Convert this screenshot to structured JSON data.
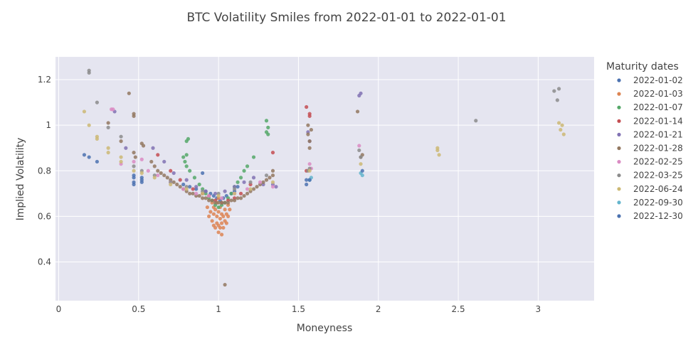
{
  "chart_data": {
    "type": "scatter",
    "title": "BTC Volatility Smiles from 2022-01-01 to 2022-01-01",
    "xlabel": "Moneyness",
    "ylabel": "Implied Volatility",
    "xlim": [
      -0.02,
      3.35
    ],
    "ylim": [
      0.23,
      1.3
    ],
    "xticks": [
      0,
      0.5,
      1,
      1.5,
      2,
      2.5,
      3
    ],
    "xtick_labels": [
      "0",
      "0.5",
      "1",
      "1.5",
      "2",
      "2.5",
      "3"
    ],
    "yticks": [
      0.4,
      0.6,
      0.8,
      1,
      1.2
    ],
    "ytick_labels": [
      "0.4",
      "0.6",
      "0.8",
      "1",
      "1.2"
    ],
    "grid": true,
    "plot_background": "#e5e5f0",
    "legend_title": "Maturity dates",
    "legend_position": "right",
    "series": [
      {
        "name": "2022-01-02",
        "color": "#4c72b0",
        "points": [
          [
            0.16,
            0.87
          ],
          [
            0.19,
            0.86
          ],
          [
            0.24,
            0.84
          ],
          [
            0.47,
            0.77
          ],
          [
            0.47,
            0.75
          ],
          [
            0.47,
            0.74
          ],
          [
            0.52,
            0.76
          ],
          [
            0.52,
            0.75
          ],
          [
            0.78,
            0.74
          ],
          [
            0.82,
            0.73
          ],
          [
            0.86,
            0.72
          ],
          [
            0.9,
            0.79
          ],
          [
            0.92,
            0.71
          ],
          [
            0.95,
            0.7
          ],
          [
            0.97,
            0.69
          ],
          [
            0.99,
            0.68
          ],
          [
            1.01,
            0.67
          ],
          [
            1.03,
            0.68
          ],
          [
            1.05,
            0.69
          ],
          [
            1.08,
            0.7
          ],
          [
            1.1,
            0.71
          ],
          [
            1.12,
            0.73
          ],
          [
            1.55,
            0.74
          ],
          [
            1.55,
            0.76
          ],
          [
            1.57,
            0.76
          ]
        ]
      },
      {
        "name": "2022-01-03",
        "color": "#dd8452",
        "points": [
          [
            0.93,
            0.64
          ],
          [
            0.94,
            0.6
          ],
          [
            0.95,
            0.62
          ],
          [
            0.96,
            0.58
          ],
          [
            0.96,
            0.66
          ],
          [
            0.97,
            0.56
          ],
          [
            0.97,
            0.61
          ],
          [
            0.98,
            0.55
          ],
          [
            0.98,
            0.63
          ],
          [
            0.99,
            0.57
          ],
          [
            0.99,
            0.6
          ],
          [
            1.0,
            0.53
          ],
          [
            1.0,
            0.56
          ],
          [
            1.0,
            0.62
          ],
          [
            1.01,
            0.55
          ],
          [
            1.01,
            0.59
          ],
          [
            1.01,
            0.64
          ],
          [
            1.02,
            0.52
          ],
          [
            1.02,
            0.57
          ],
          [
            1.02,
            0.61
          ],
          [
            1.03,
            0.55
          ],
          [
            1.03,
            0.6
          ],
          [
            1.04,
            0.58
          ],
          [
            1.04,
            0.63
          ],
          [
            1.05,
            0.57
          ],
          [
            1.05,
            0.61
          ],
          [
            1.06,
            0.6
          ],
          [
            1.06,
            0.65
          ],
          [
            1.07,
            0.63
          ],
          [
            0.99,
            0.66
          ],
          [
            1.0,
            0.68
          ],
          [
            0.97,
            0.64
          ]
        ]
      },
      {
        "name": "2022-01-07",
        "color": "#55a868",
        "points": [
          [
            0.78,
            0.86
          ],
          [
            0.79,
            0.84
          ],
          [
            0.8,
            0.82
          ],
          [
            0.8,
            0.87
          ],
          [
            0.8,
            0.93
          ],
          [
            0.81,
            0.94
          ],
          [
            0.82,
            0.8
          ],
          [
            0.85,
            0.77
          ],
          [
            0.88,
            0.74
          ],
          [
            0.9,
            0.72
          ],
          [
            0.92,
            0.7
          ],
          [
            0.94,
            0.68
          ],
          [
            0.96,
            0.67
          ],
          [
            0.98,
            0.65
          ],
          [
            1.0,
            0.64
          ],
          [
            1.02,
            0.65
          ],
          [
            1.04,
            0.66
          ],
          [
            1.06,
            0.68
          ],
          [
            1.08,
            0.7
          ],
          [
            1.1,
            0.73
          ],
          [
            1.12,
            0.75
          ],
          [
            1.14,
            0.77
          ],
          [
            1.16,
            0.8
          ],
          [
            1.18,
            0.82
          ],
          [
            1.22,
            0.86
          ],
          [
            1.3,
            1.02
          ],
          [
            1.3,
            0.97
          ],
          [
            1.31,
            0.96
          ],
          [
            1.31,
            0.99
          ]
        ]
      },
      {
        "name": "2022-01-14",
        "color": "#c44e52",
        "points": [
          [
            0.62,
            0.87
          ],
          [
            0.7,
            0.8
          ],
          [
            0.76,
            0.76
          ],
          [
            0.84,
            0.72
          ],
          [
            0.9,
            0.7
          ],
          [
            0.94,
            0.69
          ],
          [
            0.98,
            0.67
          ],
          [
            1.02,
            0.66
          ],
          [
            1.06,
            0.67
          ],
          [
            1.1,
            0.68
          ],
          [
            1.14,
            0.7
          ],
          [
            1.2,
            0.74
          ],
          [
            1.34,
            0.88
          ],
          [
            1.55,
            1.08
          ],
          [
            1.57,
            1.05
          ],
          [
            1.57,
            1.04
          ],
          [
            1.55,
            0.8
          ]
        ]
      },
      {
        "name": "2022-01-21",
        "color": "#8172b3",
        "points": [
          [
            0.35,
            1.06
          ],
          [
            0.42,
            0.9
          ],
          [
            0.59,
            0.9
          ],
          [
            0.66,
            0.84
          ],
          [
            0.72,
            0.79
          ],
          [
            0.8,
            0.76
          ],
          [
            0.86,
            0.73
          ],
          [
            0.92,
            0.71
          ],
          [
            0.98,
            0.7
          ],
          [
            1.04,
            0.71
          ],
          [
            1.1,
            0.73
          ],
          [
            1.16,
            0.75
          ],
          [
            1.22,
            0.77
          ],
          [
            1.28,
            0.74
          ],
          [
            1.34,
            0.74
          ],
          [
            1.36,
            0.73
          ],
          [
            1.56,
            0.97
          ],
          [
            1.57,
            0.93
          ],
          [
            1.88,
            1.13
          ],
          [
            1.89,
            1.14
          ]
        ]
      },
      {
        "name": "2022-01-28",
        "color": "#937860",
        "points": [
          [
            0.31,
            1.01
          ],
          [
            0.39,
            0.93
          ],
          [
            0.44,
            1.14
          ],
          [
            0.47,
            1.05
          ],
          [
            0.47,
            1.04
          ],
          [
            0.47,
            0.88
          ],
          [
            0.48,
            0.86
          ],
          [
            0.52,
            0.92
          ],
          [
            0.53,
            0.91
          ],
          [
            0.58,
            0.84
          ],
          [
            0.6,
            0.82
          ],
          [
            0.62,
            0.8
          ],
          [
            0.64,
            0.79
          ],
          [
            0.66,
            0.78
          ],
          [
            0.68,
            0.77
          ],
          [
            0.7,
            0.76
          ],
          [
            0.72,
            0.75
          ],
          [
            0.74,
            0.74
          ],
          [
            0.76,
            0.73
          ],
          [
            0.78,
            0.72
          ],
          [
            0.8,
            0.71
          ],
          [
            0.82,
            0.7
          ],
          [
            0.84,
            0.7
          ],
          [
            0.86,
            0.69
          ],
          [
            0.88,
            0.69
          ],
          [
            0.9,
            0.68
          ],
          [
            0.92,
            0.68
          ],
          [
            0.94,
            0.67
          ],
          [
            0.96,
            0.67
          ],
          [
            0.98,
            0.66
          ],
          [
            1.0,
            0.66
          ],
          [
            1.02,
            0.66
          ],
          [
            1.04,
            0.66
          ],
          [
            1.06,
            0.66
          ],
          [
            1.08,
            0.67
          ],
          [
            1.1,
            0.67
          ],
          [
            1.12,
            0.68
          ],
          [
            1.14,
            0.68
          ],
          [
            1.16,
            0.69
          ],
          [
            1.18,
            0.7
          ],
          [
            1.2,
            0.71
          ],
          [
            1.22,
            0.72
          ],
          [
            1.24,
            0.73
          ],
          [
            1.26,
            0.74
          ],
          [
            1.28,
            0.75
          ],
          [
            1.3,
            0.76
          ],
          [
            1.32,
            0.77
          ],
          [
            1.34,
            0.78
          ],
          [
            1.34,
            0.8
          ],
          [
            1.56,
            1.0
          ],
          [
            1.56,
            0.96
          ],
          [
            1.57,
            0.9
          ],
          [
            1.57,
            0.93
          ],
          [
            1.58,
            0.98
          ],
          [
            1.87,
            1.06
          ],
          [
            1.89,
            0.86
          ],
          [
            1.9,
            0.87
          ],
          [
            1.04,
            0.3
          ]
        ]
      },
      {
        "name": "2022-02-25",
        "color": "#da8bc3",
        "points": [
          [
            0.33,
            1.07
          ],
          [
            0.34,
            1.07
          ],
          [
            0.39,
            0.83
          ],
          [
            0.47,
            0.84
          ],
          [
            0.52,
            0.85
          ],
          [
            0.56,
            0.8
          ],
          [
            0.62,
            0.78
          ],
          [
            0.7,
            0.75
          ],
          [
            0.78,
            0.72
          ],
          [
            0.86,
            0.7
          ],
          [
            0.94,
            0.69
          ],
          [
            1.02,
            0.68
          ],
          [
            1.1,
            0.7
          ],
          [
            1.18,
            0.72
          ],
          [
            1.26,
            0.75
          ],
          [
            1.34,
            0.73
          ],
          [
            1.57,
            0.83
          ],
          [
            1.58,
            0.81
          ],
          [
            1.88,
            0.91
          ]
        ]
      },
      {
        "name": "2022-03-25",
        "color": "#8c8c8c",
        "points": [
          [
            0.19,
            1.24
          ],
          [
            0.19,
            1.23
          ],
          [
            0.24,
            1.1
          ],
          [
            0.31,
            0.99
          ],
          [
            0.39,
            0.95
          ],
          [
            0.47,
            0.82
          ],
          [
            0.52,
            0.8
          ],
          [
            0.6,
            0.78
          ],
          [
            0.7,
            0.75
          ],
          [
            0.8,
            0.73
          ],
          [
            0.9,
            0.71
          ],
          [
            1.0,
            0.7
          ],
          [
            1.1,
            0.72
          ],
          [
            1.2,
            0.75
          ],
          [
            1.3,
            0.78
          ],
          [
            1.56,
            0.8
          ],
          [
            1.57,
            0.81
          ],
          [
            1.88,
            0.89
          ],
          [
            1.89,
            0.86
          ],
          [
            2.61,
            1.02
          ],
          [
            3.1,
            1.15
          ],
          [
            3.12,
            1.11
          ],
          [
            3.13,
            1.16
          ]
        ]
      },
      {
        "name": "2022-06-24",
        "color": "#ccb974",
        "points": [
          [
            0.16,
            1.06
          ],
          [
            0.19,
            1.0
          ],
          [
            0.24,
            0.95
          ],
          [
            0.24,
            0.94
          ],
          [
            0.31,
            0.9
          ],
          [
            0.31,
            0.88
          ],
          [
            0.39,
            0.86
          ],
          [
            0.39,
            0.84
          ],
          [
            0.47,
            0.8
          ],
          [
            0.52,
            0.79
          ],
          [
            0.6,
            0.77
          ],
          [
            0.7,
            0.74
          ],
          [
            0.8,
            0.72
          ],
          [
            0.9,
            0.7
          ],
          [
            1.0,
            0.69
          ],
          [
            1.1,
            0.7
          ],
          [
            1.2,
            0.72
          ],
          [
            1.34,
            0.75
          ],
          [
            1.57,
            0.8
          ],
          [
            1.89,
            0.83
          ],
          [
            2.37,
            0.89
          ],
          [
            2.37,
            0.9
          ],
          [
            2.38,
            0.87
          ],
          [
            3.13,
            1.01
          ],
          [
            3.14,
            0.98
          ],
          [
            3.15,
            1.0
          ],
          [
            3.16,
            0.96
          ]
        ]
      },
      {
        "name": "2022-09-30",
        "color": "#64b5cd",
        "points": [
          [
            1.57,
            0.76
          ],
          [
            1.58,
            0.77
          ],
          [
            1.89,
            0.79
          ],
          [
            1.9,
            0.78
          ]
        ]
      },
      {
        "name": "2022-12-30",
        "color": "#4c72b0",
        "points": [
          [
            0.47,
            0.78
          ],
          [
            0.52,
            0.77
          ],
          [
            1.57,
            0.76
          ],
          [
            1.9,
            0.8
          ]
        ]
      }
    ]
  }
}
